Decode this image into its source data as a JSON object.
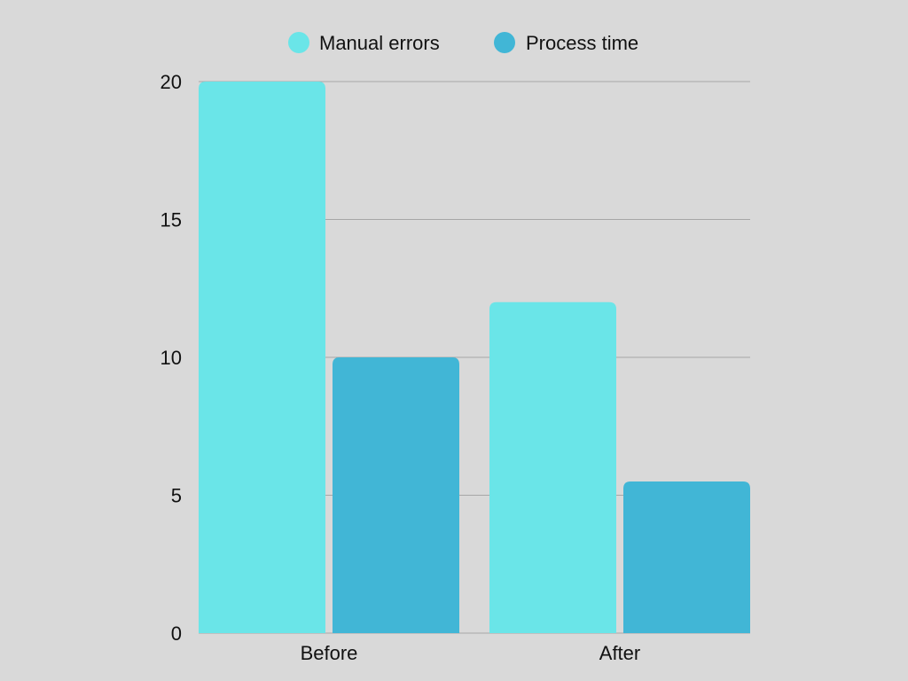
{
  "chart_data": {
    "type": "bar",
    "categories": [
      "Before",
      "After"
    ],
    "series": [
      {
        "name": "Manual errors",
        "color": "#6ae5e8",
        "values": [
          20,
          12
        ]
      },
      {
        "name": "Process time",
        "color": "#41b6d6",
        "values": [
          10,
          5.5
        ]
      }
    ],
    "ylim": [
      0,
      20
    ],
    "yticks": [
      "0",
      "5",
      "10",
      "15",
      "20"
    ],
    "grid": true,
    "legend_position": "top-center",
    "background": "#d9d9d9",
    "gridline_color": "#a6a6a6"
  }
}
